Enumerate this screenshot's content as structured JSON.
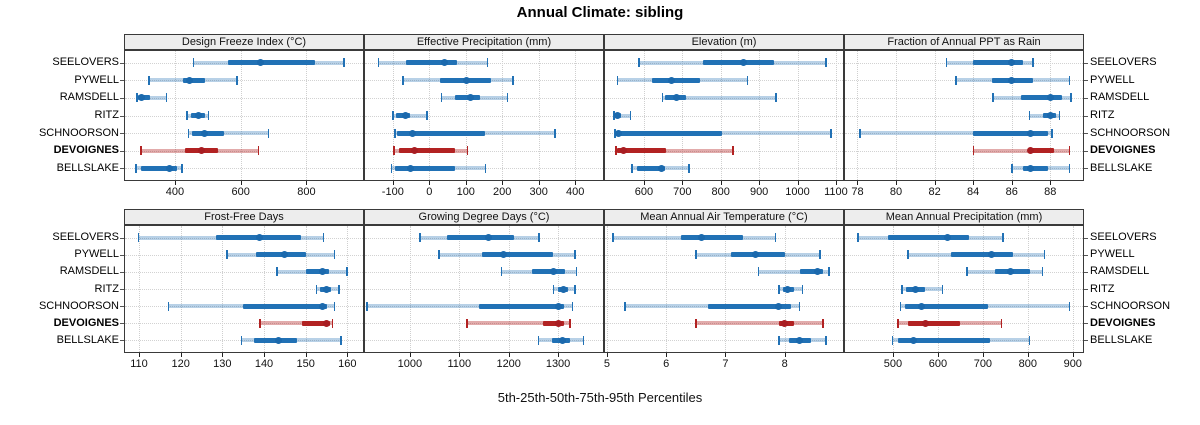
{
  "title": "Annual Climate: sibling",
  "caption": "5th-25th-50th-75th-95th Percentiles",
  "colors": {
    "blue": "#2171b5",
    "blue_light": "rgba(33,113,181,0.32)",
    "blue_dot": "#1b69ad",
    "red": "#b22222",
    "red_light": "rgba(178,34,34,0.38)",
    "red_dot": "#a81d22",
    "grid": "#cfcfcf",
    "strip_bg": "#ededed",
    "border": "#3a3a3a"
  },
  "sites": [
    "SEELOVERS",
    "PYWELL",
    "RAMSDELL",
    "RITZ",
    "SCHNOORSON",
    "DEVOIGNES",
    "BELLSLAKE"
  ],
  "highlight_site": "DEVOIGNES",
  "chart_data": {
    "type": "dotplot-percentile-grid",
    "percentile_labels": [
      "5th",
      "25th",
      "50th",
      "75th",
      "95th"
    ],
    "grid": {
      "rows": 2,
      "cols": 4
    },
    "panels": [
      {
        "label": "Design Freeze Index (°C)",
        "ticks": [
          400,
          600,
          800
        ],
        "domain": [
          245,
          975
        ],
        "values": [
          [
            455,
            560,
            660,
            825,
            915
          ],
          [
            320,
            425,
            445,
            490,
            590
          ],
          [
            283,
            287,
            298,
            325,
            375
          ],
          [
            435,
            448,
            473,
            492,
            503
          ],
          [
            440,
            452,
            490,
            548,
            685
          ],
          [
            295,
            430,
            482,
            530,
            655
          ],
          [
            281,
            296,
            382,
            406,
            422
          ]
        ]
      },
      {
        "label": "Effective Precipitation (mm)",
        "ticks": [
          -100,
          0,
          100,
          200,
          300,
          400
        ],
        "domain": [
          -179,
          479
        ],
        "values": [
          [
            -140,
            -65,
            42,
            76,
            160
          ],
          [
            -73,
            30,
            102,
            168,
            230
          ],
          [
            33,
            70,
            112,
            140,
            215
          ],
          [
            -100,
            -90,
            -66,
            -54,
            -6
          ],
          [
            -95,
            -88,
            -45,
            154,
            345
          ],
          [
            -98,
            -84,
            -41,
            70,
            105
          ],
          [
            -104,
            -93,
            -52,
            70,
            155
          ]
        ]
      },
      {
        "label": "Elevation (m)",
        "ticks": [
          600,
          700,
          800,
          900,
          1000,
          1100
        ],
        "domain": [
          496,
          1121
        ],
        "values": [
          [
            587,
            755,
            858,
            938,
            1074
          ],
          [
            530,
            621,
            671,
            745,
            870
          ],
          [
            648,
            655,
            684,
            710,
            945
          ],
          [
            521,
            524,
            532,
            541,
            566
          ],
          [
            524,
            527,
            533,
            803,
            1087
          ],
          [
            526,
            531,
            546,
            658,
            832
          ],
          [
            568,
            583,
            645,
            656,
            718
          ]
        ]
      },
      {
        "label": "Fraction of Annual PPT as Rain",
        "ticks": [
          78,
          80,
          82,
          84,
          86,
          88
        ],
        "domain": [
          77.3,
          89.75
        ],
        "values": [
          [
            82.6,
            84,
            86,
            86.6,
            87.1
          ],
          [
            83.1,
            85,
            86,
            87.1,
            89
          ],
          [
            85,
            86.5,
            88,
            88.6,
            89.1
          ],
          [
            86.9,
            87.6,
            88,
            88.3,
            88.5
          ],
          [
            78.1,
            84,
            87,
            87.9,
            88.1
          ],
          [
            84,
            86.9,
            87,
            88.2,
            89
          ],
          [
            86,
            86.6,
            87,
            87.9,
            89
          ]
        ]
      },
      {
        "label": "Frost-Free Days",
        "ticks": [
          110,
          120,
          130,
          140,
          150,
          160
        ],
        "domain": [
          106.4,
          164
        ],
        "values": [
          [
            109.8,
            128.5,
            139,
            149,
            154.3
          ],
          [
            131,
            138,
            145,
            150,
            157
          ],
          [
            143,
            150,
            154,
            155.5,
            160
          ],
          [
            152.5,
            153.5,
            155,
            156,
            158
          ],
          [
            117,
            135,
            154,
            155.2,
            157
          ],
          [
            139,
            149,
            155,
            155.8,
            156.5
          ],
          [
            134.5,
            137.5,
            143.5,
            148,
            158.5
          ]
        ]
      },
      {
        "label": "Growing Degree Days (°C)",
        "ticks": [
          1000,
          1100,
          1200,
          1300
        ],
        "domain": [
          907,
          1393
        ],
        "values": [
          [
            1020,
            1075,
            1160,
            1210,
            1262
          ],
          [
            1058,
            1146,
            1190,
            1290,
            1335
          ],
          [
            1185,
            1248,
            1290,
            1315,
            1338
          ],
          [
            1290,
            1300,
            1310,
            1320,
            1335
          ],
          [
            913,
            1140,
            1300,
            1312,
            1330
          ],
          [
            1115,
            1270,
            1300,
            1312,
            1325
          ],
          [
            1260,
            1287,
            1308,
            1325,
            1352
          ]
        ]
      },
      {
        "label": "Mean Annual Air Temperature (°C)",
        "ticks": [
          5,
          6,
          7,
          8
        ],
        "domain": [
          4.95,
          9.0
        ],
        "values": [
          [
            5.1,
            6.25,
            6.6,
            7.3,
            7.85
          ],
          [
            6.5,
            7.1,
            7.5,
            8.0,
            8.6
          ],
          [
            7.55,
            8.25,
            8.55,
            8.65,
            8.75
          ],
          [
            7.9,
            7.97,
            8.05,
            8.15,
            8.3
          ],
          [
            5.3,
            6.7,
            7.9,
            8.1,
            8.25
          ],
          [
            6.5,
            7.9,
            8.0,
            8.15,
            8.65
          ],
          [
            7.9,
            8.07,
            8.25,
            8.45,
            8.7
          ]
        ]
      },
      {
        "label": "Mean Annual Precipitation (mm)",
        "ticks": [
          500,
          600,
          700,
          800,
          900
        ],
        "domain": [
          391,
          925
        ],
        "values": [
          [
            422,
            490,
            622,
            670,
            745
          ],
          [
            533,
            630,
            720,
            767,
            838
          ],
          [
            664,
            727,
            762,
            804,
            833
          ],
          [
            520,
            528,
            549,
            571,
            611
          ],
          [
            516,
            527,
            564,
            711,
            893
          ],
          [
            511,
            533,
            573,
            650,
            742
          ],
          [
            498,
            512,
            545,
            716,
            804
          ]
        ]
      }
    ]
  }
}
